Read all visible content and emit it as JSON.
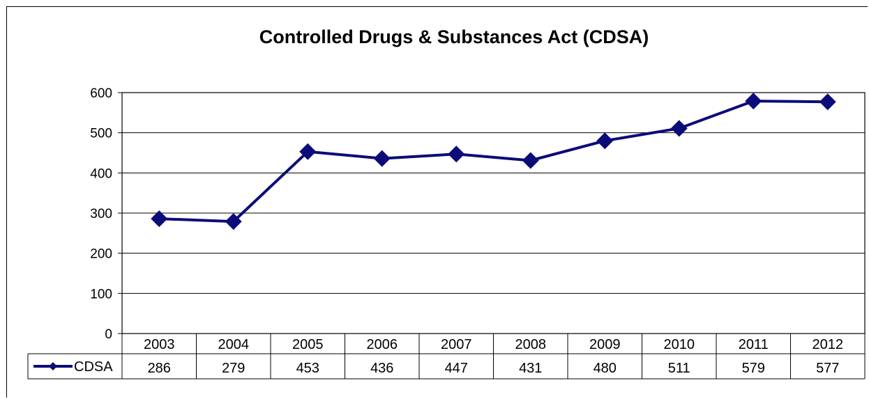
{
  "chart_data": {
    "type": "line",
    "title": "Controlled Drugs & Substances Act (CDSA)",
    "categories": [
      "2003",
      "2004",
      "2005",
      "2006",
      "2007",
      "2008",
      "2009",
      "2010",
      "2011",
      "2012"
    ],
    "series": [
      {
        "name": "CDSA",
        "values": [
          286,
          279,
          453,
          436,
          447,
          431,
          480,
          511,
          579,
          577
        ],
        "color": "#0b0b7a",
        "marker": "diamond"
      }
    ],
    "ylim": [
      0,
      600
    ],
    "yticks": [
      "0",
      "100",
      "200",
      "300",
      "400",
      "500",
      "600"
    ],
    "grid": true,
    "legend": "data-table",
    "xlabel": "",
    "ylabel": ""
  }
}
